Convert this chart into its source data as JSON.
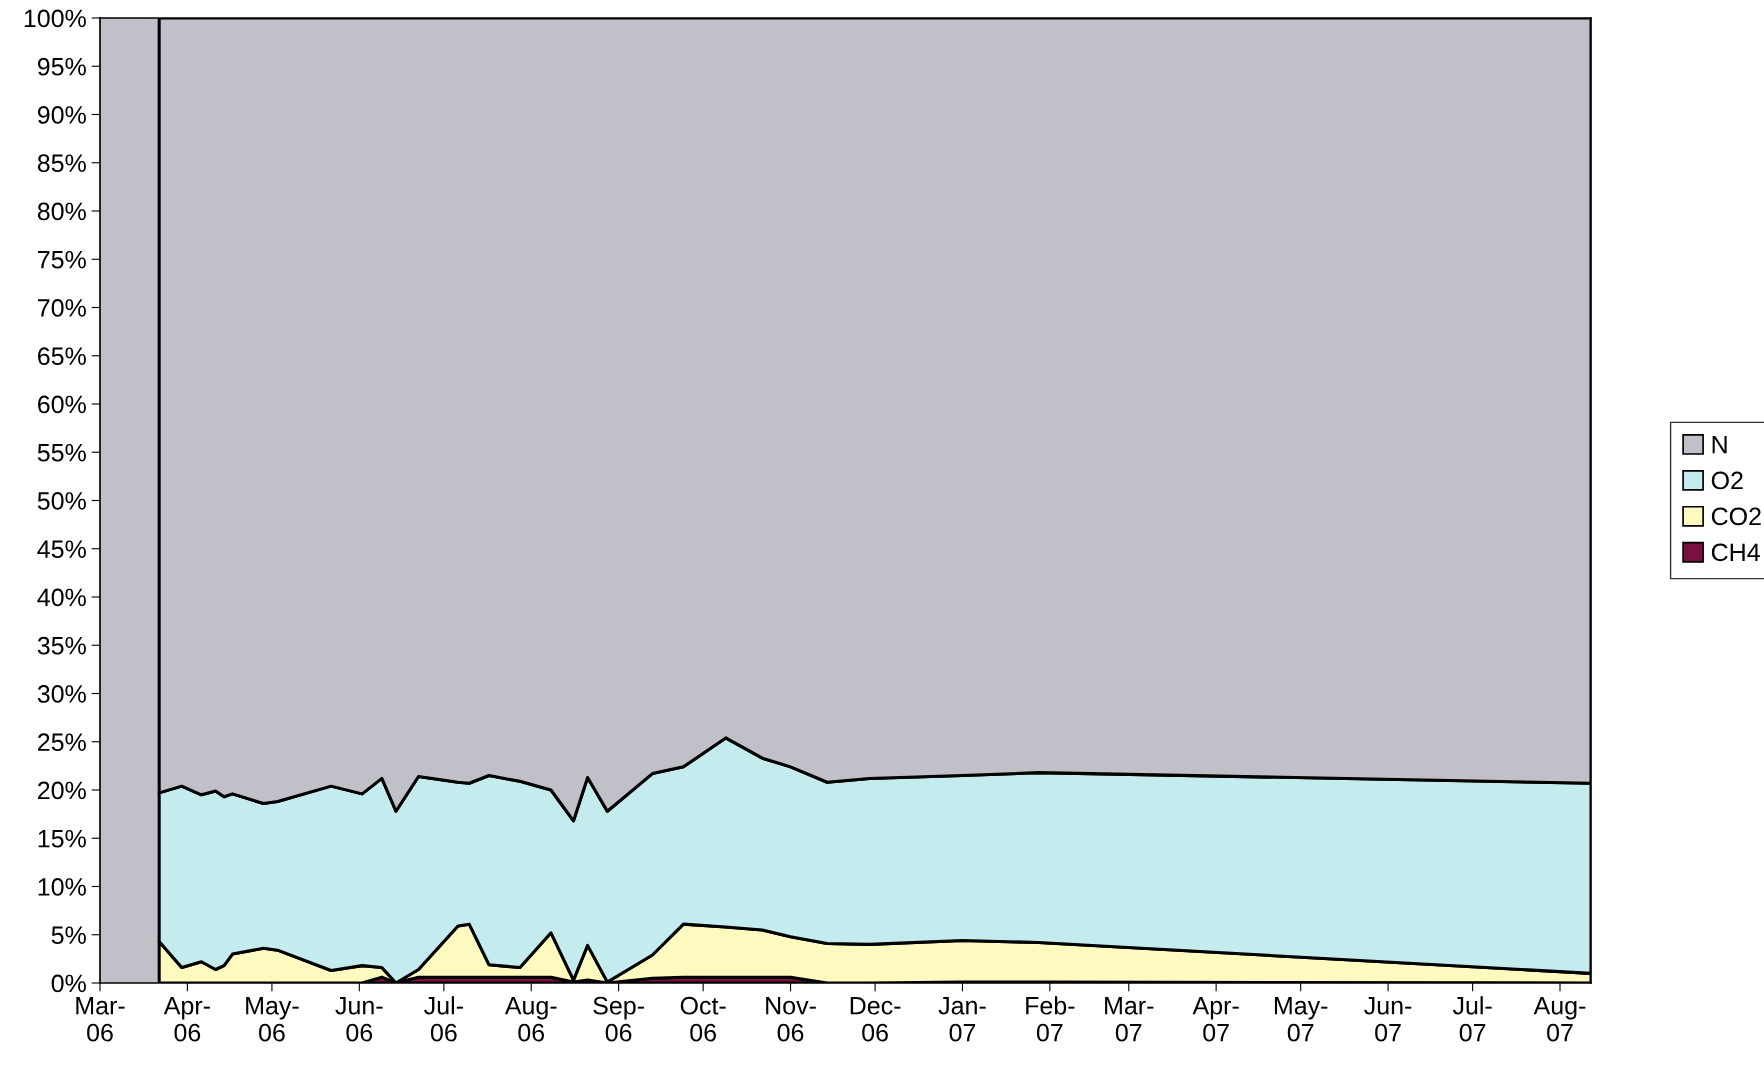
{
  "chart_data": {
    "type": "area",
    "stacked": true,
    "legend": "right",
    "grid": false,
    "x": [
      "2006-03-22",
      "2006-03-30",
      "2006-04-06",
      "2006-04-11",
      "2006-04-14",
      "2006-04-17",
      "2006-04-28",
      "2006-05-03",
      "2006-05-22",
      "2006-06-02",
      "2006-06-09",
      "2006-06-14",
      "2006-06-22",
      "2006-07-06",
      "2006-07-10",
      "2006-07-17",
      "2006-07-28",
      "2006-08-08",
      "2006-08-16",
      "2006-08-21",
      "2006-08-28",
      "2006-09-13",
      "2006-09-24",
      "2006-10-09",
      "2006-10-22",
      "2006-11-01",
      "2006-11-14",
      "2006-11-29",
      "2007-01-01",
      "2007-01-28",
      "2007-08-12"
    ],
    "series": [
      {
        "name": "CH4",
        "color": "#7a1040",
        "values": [
          0,
          0,
          0,
          0,
          0,
          0,
          0,
          0,
          0,
          0,
          0.6,
          0,
          0.6,
          0.6,
          0.6,
          0.6,
          0.6,
          0.6,
          0.1,
          0.3,
          0,
          0.5,
          0.6,
          0.6,
          0.6,
          0.6,
          0,
          0,
          0.1,
          0.1,
          0
        ]
      },
      {
        "name": "CO2",
        "color": "#fdfac0",
        "values": [
          4.3,
          1.6,
          2.2,
          1.4,
          1.8,
          3.0,
          3.6,
          3.4,
          1.3,
          1.8,
          1.0,
          0,
          0.8,
          5.3,
          5.5,
          1.3,
          1.0,
          4.6,
          0.2,
          3.6,
          0.1,
          2.4,
          5.5,
          5.2,
          4.9,
          4.2,
          4.1,
          4.0,
          4.3,
          4.1,
          1.0
        ]
      },
      {
        "name": "O2",
        "color": "#c4ecee",
        "values": [
          15.4,
          18.8,
          17.3,
          18.5,
          17.5,
          16.6,
          15.0,
          15.4,
          19.1,
          17.8,
          19.6,
          17.8,
          20.0,
          14.9,
          14.6,
          19.6,
          19.3,
          14.8,
          16.5,
          17.4,
          17.7,
          18.8,
          16.3,
          19.6,
          17.8,
          17.6,
          16.7,
          17.2,
          17.1,
          17.6,
          19.7
        ]
      },
      {
        "name": "N",
        "color": "#c0c0c8",
        "values": [
          80.3,
          79.6,
          80.5,
          80.1,
          80.7,
          80.4,
          81.4,
          81.2,
          79.6,
          80.4,
          78.8,
          82.2,
          78.6,
          79.2,
          79.3,
          78.5,
          79.1,
          80.0,
          83.2,
          78.7,
          82.2,
          78.3,
          77.6,
          74.6,
          76.7,
          77.6,
          79.2,
          78.8,
          78.5,
          78.2,
          79.3
        ]
      }
    ],
    "xlim": [
      "2006-03-01",
      "2007-08-12"
    ],
    "xticks": [
      {
        "value": "2006-03-01",
        "label": "Mar-\n06"
      },
      {
        "value": "2006-04-01",
        "label": "Apr-\n06"
      },
      {
        "value": "2006-05-01",
        "label": "May-\n06"
      },
      {
        "value": "2006-06-01",
        "label": "Jun-\n06"
      },
      {
        "value": "2006-07-01",
        "label": "Jul-\n06"
      },
      {
        "value": "2006-08-01",
        "label": "Aug-\n06"
      },
      {
        "value": "2006-09-01",
        "label": "Sep-\n06"
      },
      {
        "value": "2006-10-01",
        "label": "Oct-\n06"
      },
      {
        "value": "2006-11-01",
        "label": "Nov-\n06"
      },
      {
        "value": "2006-12-01",
        "label": "Dec-\n06"
      },
      {
        "value": "2007-01-01",
        "label": "Jan-\n07"
      },
      {
        "value": "2007-02-01",
        "label": "Feb-\n07"
      },
      {
        "value": "2007-03-01",
        "label": "Mar-\n07"
      },
      {
        "value": "2007-04-01",
        "label": "Apr-\n07"
      },
      {
        "value": "2007-05-01",
        "label": "May-\n07"
      },
      {
        "value": "2007-06-01",
        "label": "Jun-\n07"
      },
      {
        "value": "2007-07-01",
        "label": "Jul-\n07"
      },
      {
        "value": "2007-08-01",
        "label": "Aug-\n07"
      }
    ],
    "ylim": [
      0,
      100
    ],
    "yticks": [
      {
        "value": 0,
        "label": "0%"
      },
      {
        "value": 5,
        "label": "5%"
      },
      {
        "value": 10,
        "label": "10%"
      },
      {
        "value": 15,
        "label": "15%"
      },
      {
        "value": 20,
        "label": "20%"
      },
      {
        "value": 25,
        "label": "25%"
      },
      {
        "value": 30,
        "label": "30%"
      },
      {
        "value": 35,
        "label": "35%"
      },
      {
        "value": 40,
        "label": "40%"
      },
      {
        "value": 45,
        "label": "45%"
      },
      {
        "value": 50,
        "label": "50%"
      },
      {
        "value": 55,
        "label": "55%"
      },
      {
        "value": 60,
        "label": "60%"
      },
      {
        "value": 65,
        "label": "65%"
      },
      {
        "value": 70,
        "label": "70%"
      },
      {
        "value": 75,
        "label": "75%"
      },
      {
        "value": 80,
        "label": "80%"
      },
      {
        "value": 85,
        "label": "85%"
      },
      {
        "value": 90,
        "label": "90%"
      },
      {
        "value": 95,
        "label": "95%"
      },
      {
        "value": 100,
        "label": "100%"
      }
    ]
  }
}
